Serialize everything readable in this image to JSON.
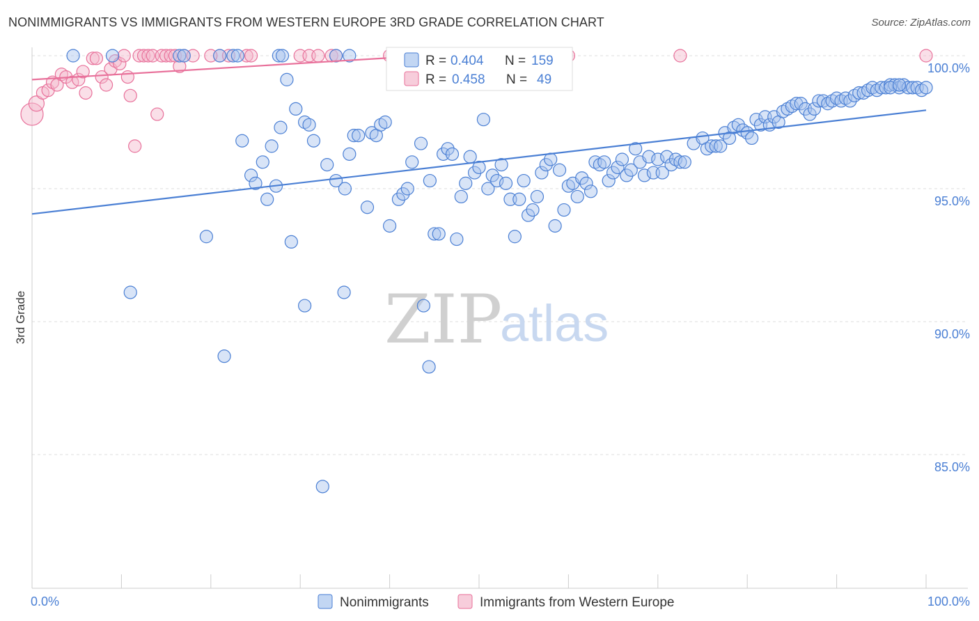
{
  "header": {
    "title": "NONIMMIGRANTS VS IMMIGRANTS FROM WESTERN EUROPE 3RD GRADE CORRELATION CHART",
    "source": "Source: ZipAtlas.com"
  },
  "colors": {
    "blue": "#4a7fd4",
    "blue_fill": "#a8c4ee",
    "pink": "#e8709a",
    "pink_fill": "#f4b8cc",
    "grid": "#dddddd"
  },
  "watermark": {
    "zip": "ZIP",
    "atlas": "atlas"
  },
  "chart_data": {
    "type": "scatter",
    "ylabel": "3rd Grade",
    "xlim": [
      0,
      100
    ],
    "ylim": [
      80.5,
      100.8
    ],
    "x_tick_labels": [
      "0.0%",
      "100.0%"
    ],
    "y_ticks": [
      {
        "value": 100,
        "label": "100.0%"
      },
      {
        "value": 95,
        "label": "95.0%"
      },
      {
        "value": 90,
        "label": "90.0%"
      },
      {
        "value": 85,
        "label": "85.0%"
      }
    ],
    "legend": {
      "rows": [
        {
          "r_label": "R = ",
          "r_value": "0.404",
          "n_label": "N = ",
          "n_value": "159"
        },
        {
          "r_label": "R = ",
          "r_value": "0.458",
          "n_label": "N = ",
          "n_value": "49"
        }
      ]
    },
    "series": [
      {
        "name": "Nonimmigrants",
        "color": "#4a7fd4",
        "trend": {
          "x0": 0,
          "y0": 94.05,
          "x1": 100,
          "y1": 97.95
        },
        "points": [
          [
            4.6,
            100
          ],
          [
            9.0,
            100
          ],
          [
            16.5,
            100
          ],
          [
            21.0,
            100
          ],
          [
            22.5,
            100
          ],
          [
            23.0,
            100
          ],
          [
            27.6,
            100
          ],
          [
            28.0,
            100
          ],
          [
            34.0,
            100
          ],
          [
            40.5,
            99.1
          ],
          [
            17.0,
            100
          ],
          [
            35.5,
            100
          ],
          [
            23.5,
            96.8
          ],
          [
            24.5,
            95.5
          ],
          [
            25.0,
            95.2
          ],
          [
            25.8,
            96.0
          ],
          [
            26.3,
            94.6
          ],
          [
            26.8,
            96.6
          ],
          [
            27.3,
            95.1
          ],
          [
            27.8,
            97.3
          ],
          [
            28.5,
            99.1
          ],
          [
            29.5,
            98.0
          ],
          [
            30.5,
            97.5
          ],
          [
            31.0,
            97.4
          ],
          [
            31.5,
            96.8
          ],
          [
            33.0,
            95.9
          ],
          [
            34.0,
            95.3
          ],
          [
            35.0,
            95.0
          ],
          [
            35.5,
            96.3
          ],
          [
            36.0,
            97.0
          ],
          [
            36.5,
            97.0
          ],
          [
            37.5,
            94.3
          ],
          [
            38.0,
            97.1
          ],
          [
            38.5,
            97.0
          ],
          [
            39.0,
            97.4
          ],
          [
            39.5,
            97.5
          ],
          [
            40.0,
            93.6
          ],
          [
            41.0,
            94.6
          ],
          [
            41.5,
            94.8
          ],
          [
            42.0,
            95.0
          ],
          [
            42.5,
            96.0
          ],
          [
            43.5,
            96.7
          ],
          [
            44.5,
            95.3
          ],
          [
            45.0,
            93.3
          ],
          [
            45.5,
            93.3
          ],
          [
            46.0,
            96.3
          ],
          [
            46.5,
            96.5
          ],
          [
            47.0,
            96.3
          ],
          [
            47.5,
            93.1
          ],
          [
            48.0,
            94.7
          ],
          [
            48.5,
            95.2
          ],
          [
            49.0,
            96.2
          ],
          [
            49.5,
            95.6
          ],
          [
            50.0,
            95.8
          ],
          [
            50.5,
            97.6
          ],
          [
            51.0,
            95.0
          ],
          [
            51.5,
            95.5
          ],
          [
            52.0,
            95.3
          ],
          [
            52.5,
            95.9
          ],
          [
            53.0,
            95.2
          ],
          [
            53.5,
            94.6
          ],
          [
            54.0,
            93.2
          ],
          [
            54.5,
            94.6
          ],
          [
            55.0,
            95.3
          ],
          [
            55.5,
            94.0
          ],
          [
            56.0,
            94.2
          ],
          [
            56.5,
            94.7
          ],
          [
            57.0,
            95.6
          ],
          [
            57.5,
            95.9
          ],
          [
            58.0,
            96.1
          ],
          [
            58.5,
            93.6
          ],
          [
            59.0,
            95.7
          ],
          [
            59.5,
            94.2
          ],
          [
            60.0,
            95.1
          ],
          [
            60.5,
            95.2
          ],
          [
            61.0,
            94.7
          ],
          [
            61.5,
            95.4
          ],
          [
            62.0,
            95.2
          ],
          [
            62.5,
            94.9
          ],
          [
            63.0,
            96.0
          ],
          [
            63.5,
            95.9
          ],
          [
            64.0,
            96.0
          ],
          [
            64.5,
            95.3
          ],
          [
            65.0,
            95.6
          ],
          [
            65.5,
            95.8
          ],
          [
            66.0,
            96.1
          ],
          [
            66.5,
            95.5
          ],
          [
            67.0,
            95.7
          ],
          [
            67.5,
            96.5
          ],
          [
            68.0,
            96.0
          ],
          [
            68.5,
            95.5
          ],
          [
            69.0,
            96.2
          ],
          [
            69.5,
            95.6
          ],
          [
            70.0,
            96.1
          ],
          [
            70.5,
            95.6
          ],
          [
            71.0,
            96.2
          ],
          [
            71.5,
            95.9
          ],
          [
            72.0,
            96.1
          ],
          [
            72.5,
            96.0
          ],
          [
            73.0,
            96.0
          ],
          [
            74.0,
            96.7
          ],
          [
            75.0,
            96.9
          ],
          [
            75.5,
            96.5
          ],
          [
            76.0,
            96.6
          ],
          [
            76.5,
            96.6
          ],
          [
            77.0,
            96.6
          ],
          [
            77.5,
            97.1
          ],
          [
            78.0,
            96.9
          ],
          [
            78.5,
            97.3
          ],
          [
            79.0,
            97.4
          ],
          [
            79.5,
            97.2
          ],
          [
            80.0,
            97.1
          ],
          [
            80.5,
            96.9
          ],
          [
            81.0,
            97.6
          ],
          [
            81.5,
            97.4
          ],
          [
            82.0,
            97.7
          ],
          [
            82.5,
            97.4
          ],
          [
            83.0,
            97.7
          ],
          [
            83.5,
            97.5
          ],
          [
            84.0,
            97.9
          ],
          [
            84.5,
            98.0
          ],
          [
            85.0,
            98.1
          ],
          [
            85.5,
            98.2
          ],
          [
            86.0,
            98.2
          ],
          [
            86.5,
            98.0
          ],
          [
            87.0,
            97.8
          ],
          [
            87.5,
            98.0
          ],
          [
            88.0,
            98.3
          ],
          [
            88.5,
            98.3
          ],
          [
            89.0,
            98.2
          ],
          [
            89.5,
            98.3
          ],
          [
            90.0,
            98.4
          ],
          [
            90.5,
            98.3
          ],
          [
            91.0,
            98.4
          ],
          [
            91.5,
            98.3
          ],
          [
            92.0,
            98.5
          ],
          [
            92.5,
            98.6
          ],
          [
            93.0,
            98.6
          ],
          [
            93.5,
            98.7
          ],
          [
            94.0,
            98.8
          ],
          [
            94.5,
            98.7
          ],
          [
            95.0,
            98.8
          ],
          [
            95.5,
            98.8
          ],
          [
            96.0,
            98.9
          ],
          [
            96.5,
            98.9
          ],
          [
            97.0,
            98.8
          ],
          [
            97.5,
            98.9
          ],
          [
            98.0,
            98.8
          ],
          [
            98.5,
            98.8
          ],
          [
            99.0,
            98.8
          ],
          [
            99.5,
            98.7
          ],
          [
            100.0,
            98.8
          ],
          [
            96.0,
            98.8
          ],
          [
            97.0,
            98.9
          ],
          [
            11.0,
            91.1
          ],
          [
            19.5,
            93.2
          ],
          [
            21.5,
            88.7
          ],
          [
            29.0,
            93.0
          ],
          [
            30.5,
            90.6
          ],
          [
            34.9,
            91.1
          ],
          [
            43.8,
            90.6
          ],
          [
            44.4,
            88.3
          ],
          [
            32.5,
            83.8
          ]
        ]
      },
      {
        "name": "Immigrants from Western Europe",
        "color": "#e8709a",
        "trend": {
          "x0": 0,
          "y0": 99.1,
          "x1": 44,
          "y1": 100.0
        },
        "points": [
          [
            0.0,
            97.8
          ],
          [
            0.5,
            98.2
          ],
          [
            1.2,
            98.6
          ],
          [
            1.8,
            98.7
          ],
          [
            2.3,
            99.0
          ],
          [
            2.8,
            98.9
          ],
          [
            3.3,
            99.3
          ],
          [
            3.8,
            99.2
          ],
          [
            4.5,
            99.0
          ],
          [
            5.2,
            99.1
          ],
          [
            5.7,
            99.4
          ],
          [
            6.0,
            98.6
          ],
          [
            6.8,
            99.9
          ],
          [
            7.2,
            99.9
          ],
          [
            7.8,
            99.2
          ],
          [
            8.3,
            98.9
          ],
          [
            8.8,
            99.5
          ],
          [
            9.3,
            99.8
          ],
          [
            9.8,
            99.7
          ],
          [
            10.3,
            100
          ],
          [
            10.7,
            99.2
          ],
          [
            11.0,
            98.5
          ],
          [
            11.5,
            96.6
          ],
          [
            12.0,
            100
          ],
          [
            12.5,
            100
          ],
          [
            13.0,
            100
          ],
          [
            13.5,
            100
          ],
          [
            14.0,
            97.8
          ],
          [
            14.5,
            100
          ],
          [
            15.0,
            100
          ],
          [
            15.5,
            100
          ],
          [
            16.0,
            100
          ],
          [
            16.5,
            99.6
          ],
          [
            17.0,
            100
          ],
          [
            18.0,
            100
          ],
          [
            21.0,
            100
          ],
          [
            22.0,
            100
          ],
          [
            24.0,
            100
          ],
          [
            24.5,
            100
          ],
          [
            30.0,
            100
          ],
          [
            31.0,
            100
          ],
          [
            32.0,
            100
          ],
          [
            33.5,
            100
          ],
          [
            34.0,
            100
          ],
          [
            40.0,
            100
          ],
          [
            60.0,
            100
          ],
          [
            72.5,
            100
          ],
          [
            100.0,
            100
          ],
          [
            20.0,
            100
          ]
        ]
      }
    ],
    "bottom_legend": [
      "Nonimmigrants",
      "Immigrants from Western Europe"
    ]
  }
}
